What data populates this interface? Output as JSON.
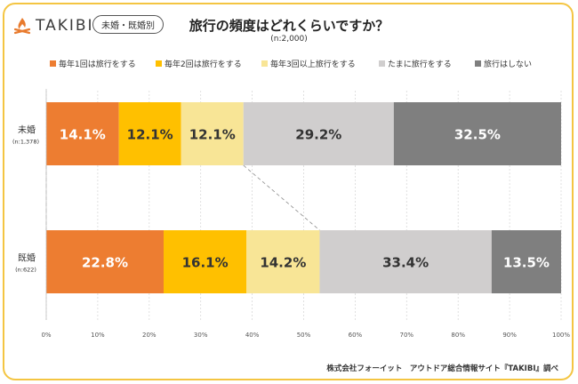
{
  "logo": {
    "text": "TAKIBI",
    "icon": "campfire-icon",
    "color": "#e87b2e"
  },
  "badge": "未婚・既婚別",
  "chart_data": {
    "type": "bar",
    "orientation": "horizontal-stacked-100",
    "title": "旅行の頻度はどれくらいですか？",
    "subtitle": "(n:2,000)",
    "categories": [
      {
        "label": "未婚",
        "n": "(n:1,378)"
      },
      {
        "label": "既婚",
        "n": "(n:622)"
      }
    ],
    "series": [
      {
        "name": "毎年1回は旅行をする",
        "color": "#ed7d31",
        "values": [
          14.1,
          22.8
        ],
        "labels": [
          "14.1%",
          "22.8%"
        ],
        "label_color": "#ffffff"
      },
      {
        "name": "毎年2回は旅行をする",
        "color": "#ffc000",
        "values": [
          12.1,
          16.1
        ],
        "labels": [
          "12.1%",
          "16.1%"
        ],
        "label_color": "#333333"
      },
      {
        "name": "毎年3回以上旅行をする",
        "color": "#f8e596",
        "values": [
          12.1,
          14.2
        ],
        "labels": [
          "12.1%",
          "14.2%"
        ],
        "label_color": "#333333"
      },
      {
        "name": "たまに旅行をする",
        "color": "#d0cece",
        "values": [
          29.2,
          33.4
        ],
        "labels": [
          "29.2%",
          "33.4%"
        ],
        "label_color": "#333333"
      },
      {
        "name": "旅行はしない",
        "color": "#7f7f7f",
        "values": [
          32.5,
          13.5
        ],
        "labels": [
          "32.5%",
          "13.5%"
        ],
        "label_color": "#ffffff"
      }
    ],
    "xlim": [
      0,
      100
    ],
    "xticks": [
      "0%",
      "10%",
      "20%",
      "30%",
      "40%",
      "50%",
      "60%",
      "70%",
      "80%",
      "90%",
      "100%"
    ],
    "legend_position": "top",
    "connector_lines": "dashed lines linking cumulative share of first three series between bars"
  },
  "source": "株式会社フォーイット　アウトドア総合情報サイト『TAKIBI』調べ"
}
